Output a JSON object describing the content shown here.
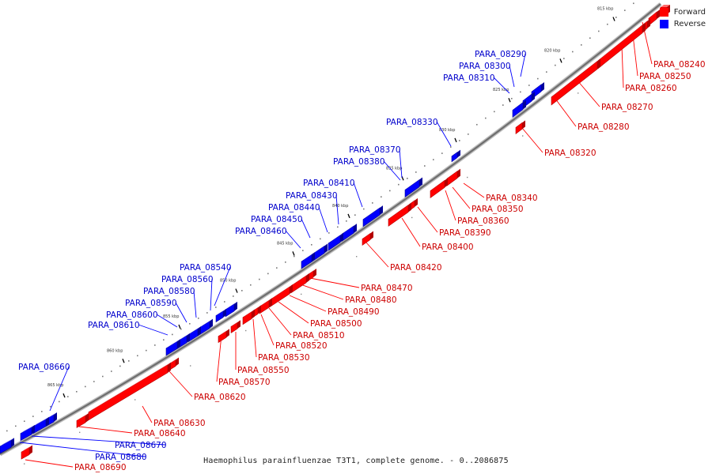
{
  "legend": {
    "forward_label": "Forward",
    "reverse_label": "Reverse",
    "forward_color": "#ff0000",
    "reverse_color": "#0000ff"
  },
  "caption": "Haemophilus parainfluenzae T3T1, complete genome. - 0..2086875",
  "ticks": [
    "815 kbp",
    "820 kbp",
    "825 kbp",
    "830 kbp",
    "835 kbp",
    "840 kbp",
    "845 kbp",
    "850 kbp",
    "855 kbp",
    "860 kbp",
    "865 kbp"
  ],
  "reverse_genes": [
    "PARA_08290",
    "PARA_08300",
    "PARA_08310",
    "PARA_08330",
    "PARA_08370",
    "PARA_08380",
    "PARA_08410",
    "PARA_08430",
    "PARA_08440",
    "PARA_08450",
    "PARA_08460",
    "PARA_08540",
    "PARA_08560",
    "PARA_08580",
    "PARA_08590",
    "PARA_08600",
    "PARA_08610",
    "PARA_08660",
    "PARA_08670",
    "PARA_08680"
  ],
  "forward_genes": [
    "PARA_08240",
    "PARA_08250",
    "PARA_08260",
    "PARA_08270",
    "PARA_08280",
    "PARA_08320",
    "PARA_08340",
    "PARA_08350",
    "PARA_08360",
    "PARA_08390",
    "PARA_08400",
    "PARA_08420",
    "PARA_08470",
    "PARA_08480",
    "PARA_08490",
    "PARA_08500",
    "PARA_08510",
    "PARA_08520",
    "PARA_08530",
    "PARA_08550",
    "PARA_08570",
    "PARA_08620",
    "PARA_08630",
    "PARA_08640",
    "PARA_08690"
  ]
}
